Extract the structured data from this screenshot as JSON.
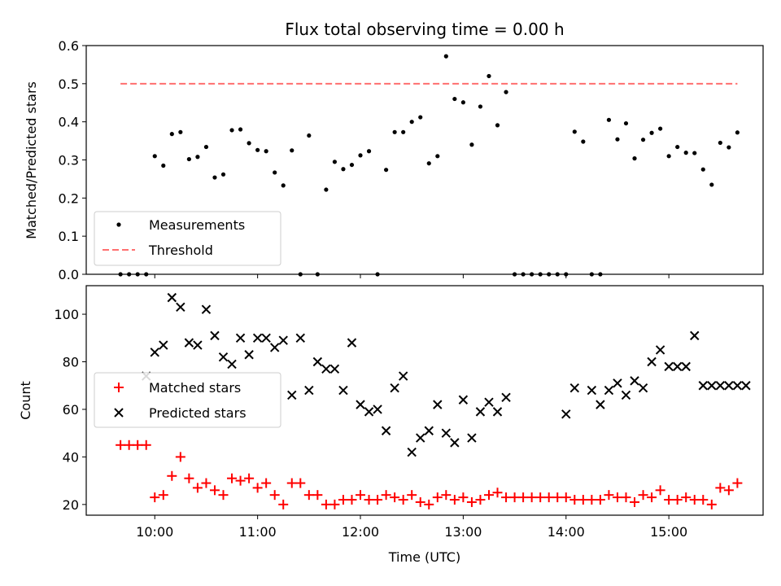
{
  "chart_data": [
    {
      "type": "scatter",
      "title": "Flux total observing time = 0.00 h",
      "xlabel": "",
      "ylabel": "Matched/Predicted stars",
      "ylim": [
        0,
        0.6
      ],
      "yticks": [
        "0.0",
        "0.1",
        "0.2",
        "0.3",
        "0.4",
        "0.5",
        "0.6"
      ],
      "legend_position": "lower-left",
      "threshold": {
        "name": "Threshold",
        "value": 0.5,
        "x_range": [
          "09:40",
          "15:40"
        ],
        "color": "#ff6f6f",
        "style": "dashed"
      },
      "series": [
        {
          "name": "Measurements",
          "color": "#000000",
          "marker": "dot",
          "x": [
            "09:40",
            "09:45",
            "09:50",
            "09:55",
            "10:00",
            "10:05",
            "10:10",
            "10:15",
            "10:20",
            "10:25",
            "10:30",
            "10:35",
            "10:40",
            "10:45",
            "10:50",
            "10:55",
            "11:00",
            "11:05",
            "11:10",
            "11:15",
            "11:20",
            "11:25",
            "11:30",
            "11:35",
            "11:40",
            "11:45",
            "11:50",
            "11:55",
            "12:00",
            "12:05",
            "12:10",
            "12:15",
            "12:20",
            "12:25",
            "12:30",
            "12:35",
            "12:40",
            "12:45",
            "12:50",
            "12:55",
            "13:00",
            "13:05",
            "13:10",
            "13:15",
            "13:20",
            "13:25",
            "13:30",
            "13:35",
            "13:40",
            "13:45",
            "13:50",
            "13:55",
            "14:00",
            "14:05",
            "14:10",
            "14:15",
            "14:20",
            "14:25",
            "14:30",
            "14:35",
            "14:40",
            "14:45",
            "14:50",
            "14:55",
            "15:00",
            "15:05",
            "15:10",
            "15:15",
            "15:20",
            "15:25",
            "15:30",
            "15:35",
            "15:40"
          ],
          "y": [
            0.0,
            0.0,
            0.0,
            0.0,
            0.31,
            0.285,
            0.368,
            0.373,
            0.302,
            0.308,
            0.334,
            0.254,
            0.262,
            0.378,
            0.38,
            0.344,
            0.326,
            0.323,
            0.267,
            0.233,
            0.325,
            0.0,
            0.364,
            0.0,
            0.222,
            0.295,
            0.276,
            0.287,
            0.312,
            0.323,
            0.0,
            0.274,
            0.373,
            0.373,
            0.4,
            0.412,
            0.291,
            0.31,
            0.572,
            0.46,
            0.451,
            0.34,
            0.44,
            0.52,
            0.391,
            0.478,
            0.0,
            0.0,
            0.0,
            0.0,
            0.0,
            0.0,
            0.0,
            0.374,
            0.348,
            0.0,
            0.0,
            0.405,
            0.354,
            0.396,
            0.304,
            0.353,
            0.371,
            0.382,
            0.31,
            0.334,
            0.319,
            0.318,
            0.275,
            0.235,
            0.345,
            0.333,
            0.372
          ]
        }
      ]
    },
    {
      "type": "scatter",
      "title": "",
      "xlabel": "Time (UTC)",
      "ylabel": "Count",
      "xlim": [
        "09:20",
        "15:55"
      ],
      "xticks": [
        "10:00",
        "11:00",
        "12:00",
        "13:00",
        "14:00",
        "15:00"
      ],
      "ylim": [
        15.5,
        112
      ],
      "yticks": [
        "20",
        "40",
        "60",
        "80",
        "100"
      ],
      "legend_position": "center-left",
      "series": [
        {
          "name": "Matched stars",
          "color": "#ff0000",
          "marker": "plus",
          "x": [
            "09:40",
            "09:45",
            "09:50",
            "09:55",
            "10:00",
            "10:05",
            "10:10",
            "10:15",
            "10:20",
            "10:25",
            "10:30",
            "10:35",
            "10:40",
            "10:45",
            "10:50",
            "10:55",
            "11:00",
            "11:05",
            "11:10",
            "11:15",
            "11:20",
            "11:25",
            "11:30",
            "11:35",
            "11:40",
            "11:45",
            "11:50",
            "11:55",
            "12:00",
            "12:05",
            "12:10",
            "12:15",
            "12:20",
            "12:25",
            "12:30",
            "12:35",
            "12:40",
            "12:45",
            "12:50",
            "12:55",
            "13:00",
            "13:05",
            "13:10",
            "13:15",
            "13:20",
            "13:25",
            "13:30",
            "13:35",
            "13:40",
            "13:45",
            "13:50",
            "13:55",
            "14:00",
            "14:05",
            "14:10",
            "14:15",
            "14:20",
            "14:25",
            "14:30",
            "14:35",
            "14:40",
            "14:45",
            "14:50",
            "14:55",
            "15:00",
            "15:05",
            "15:10",
            "15:15",
            "15:20",
            "15:25",
            "15:30",
            "15:35",
            "15:40"
          ],
          "y": [
            45,
            45,
            45,
            45,
            23,
            24,
            32,
            40,
            31,
            27,
            29,
            26,
            24,
            31,
            30,
            31,
            27,
            29,
            24,
            20,
            29,
            29,
            24,
            24,
            20,
            20,
            22,
            22,
            24,
            22,
            22,
            24,
            23,
            22,
            24,
            21,
            20,
            23,
            24,
            22,
            23,
            21,
            22,
            24,
            25,
            23,
            23,
            23,
            23,
            23,
            23,
            23,
            23,
            22,
            22,
            22,
            22,
            24,
            23,
            23,
            21,
            24,
            23,
            26,
            22,
            22,
            23,
            22,
            22,
            20,
            27,
            26,
            29
          ]
        },
        {
          "name": "Predicted stars",
          "color": "#000000",
          "marker": "x",
          "x": [
            "09:55",
            "10:00",
            "10:05",
            "10:10",
            "10:15",
            "10:20",
            "10:25",
            "10:30",
            "10:35",
            "10:40",
            "10:45",
            "10:50",
            "10:55",
            "11:00",
            "11:05",
            "11:10",
            "11:15",
            "11:20",
            "11:25",
            "11:30",
            "11:35",
            "11:40",
            "11:45",
            "11:50",
            "11:55",
            "12:00",
            "12:05",
            "12:10",
            "12:15",
            "12:20",
            "12:25",
            "12:30",
            "12:35",
            "12:40",
            "12:45",
            "12:50",
            "12:55",
            "13:00",
            "13:05",
            "13:10",
            "13:15",
            "13:20",
            "13:25",
            "14:00",
            "14:05",
            "14:15",
            "14:20",
            "14:25",
            "14:30",
            "14:35",
            "14:40",
            "14:45",
            "14:50",
            "14:55",
            "15:00",
            "15:05",
            "15:10",
            "15:15",
            "15:20",
            "15:25",
            "15:30",
            "15:35",
            "15:40",
            "15:45"
          ],
          "y": [
            74,
            84,
            87,
            107,
            103,
            88,
            87,
            102,
            91,
            82,
            79,
            90,
            83,
            90,
            90,
            86,
            89,
            66,
            90,
            68,
            80,
            77,
            77,
            68,
            88,
            62,
            59,
            60,
            51,
            69,
            74,
            42,
            48,
            51,
            62,
            50,
            46,
            64,
            48,
            59,
            63,
            59,
            65,
            58,
            69,
            68,
            62,
            68,
            71,
            66,
            72,
            69,
            80,
            85,
            78,
            78,
            78,
            91,
            70,
            70,
            70,
            70,
            70,
            70
          ]
        }
      ]
    }
  ]
}
